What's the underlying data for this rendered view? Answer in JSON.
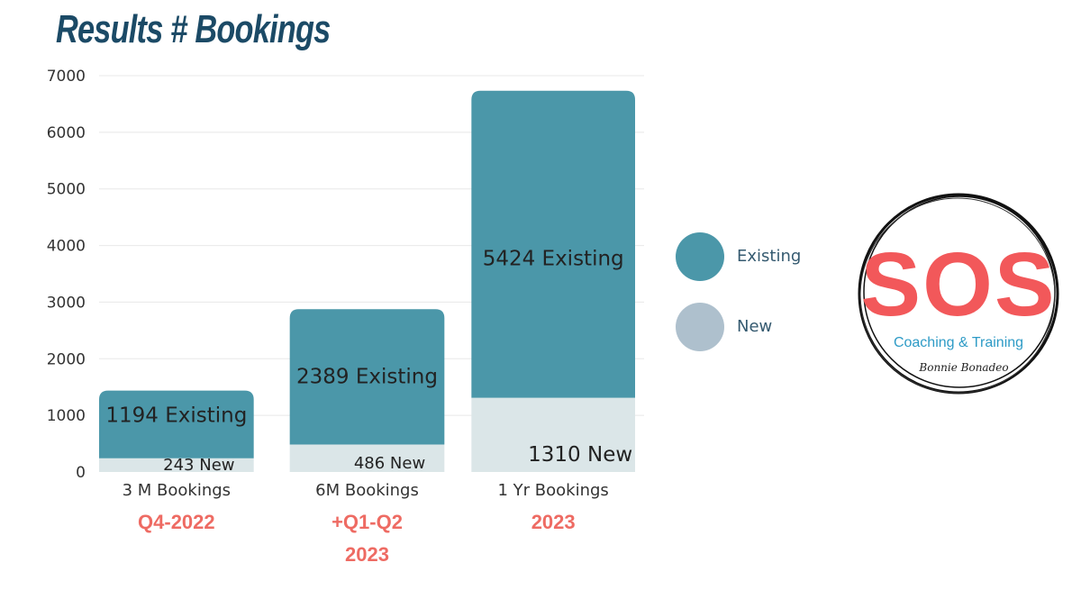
{
  "title": "Results # Bookings",
  "colors": {
    "existing": "#4b97a9",
    "new": "#dbe6e8",
    "legend_new": "#aec0cd",
    "subtitle": "#ee6b63",
    "title": "#1b4a66",
    "logo_red": "#f2585a",
    "logo_blue": "#2e9bc6"
  },
  "chart_data": {
    "type": "bar",
    "stacked": true,
    "categories": [
      "3 M Bookings",
      "6M Bookings",
      "1 Yr Bookings"
    ],
    "category_sublabels": [
      [
        "Q4-2022"
      ],
      [
        "+Q1-Q2",
        "2023"
      ],
      [
        "2023"
      ]
    ],
    "series": [
      {
        "name": "New",
        "values": [
          243,
          486,
          1310
        ],
        "data_labels": [
          "243 New",
          "486 New",
          "1310 New"
        ]
      },
      {
        "name": "Existing",
        "values": [
          1194,
          2389,
          5424
        ],
        "data_labels": [
          "1194 Existing",
          "2389 Existing",
          "5424 Existing"
        ]
      }
    ],
    "ylim": [
      0,
      7000
    ],
    "yticks": [
      "0",
      "1000",
      "2000",
      "3000",
      "4000",
      "5000",
      "6000",
      "7000"
    ],
    "grid": true,
    "legend_position": "right",
    "legend": [
      {
        "name": "Existing",
        "icon": "circle-existing"
      },
      {
        "name": "New",
        "icon": "circle-new"
      }
    ]
  },
  "logo": {
    "name": "SOS Coaching & Training logo",
    "text_main": "SOS",
    "text_sub": "Coaching & Training",
    "signature": "Bonnie Bonadeo"
  }
}
